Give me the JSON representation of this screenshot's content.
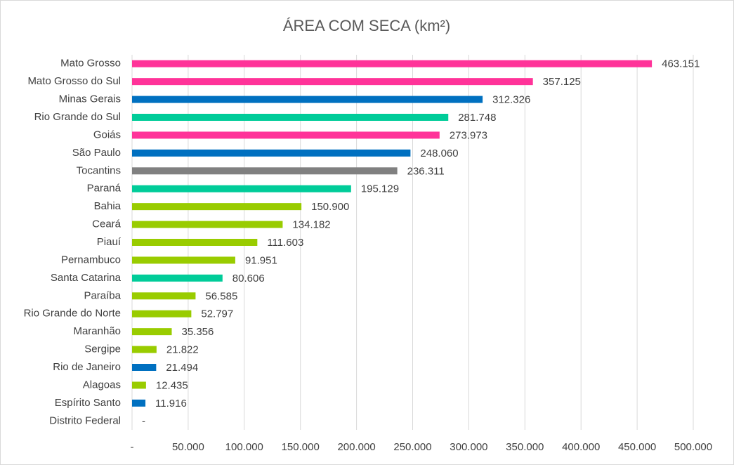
{
  "chart_data": {
    "type": "barh",
    "title": "ÁREA COM SECA (km²)",
    "categories": [
      "Mato Grosso",
      "Mato Grosso do Sul",
      "Minas Gerais",
      "Rio Grande do Sul",
      "Goiás",
      "São Paulo",
      "Tocantins",
      "Paraná",
      "Bahia",
      "Ceará",
      "Piauí",
      "Pernambuco",
      "Santa Catarina",
      "Paraíba",
      "Rio Grande do Norte",
      "Maranhão",
      "Sergipe",
      "Rio de Janeiro",
      "Alagoas",
      "Espírito Santo",
      "Distrito Federal"
    ],
    "values": [
      463151,
      357125,
      312326,
      281748,
      273973,
      248060,
      236311,
      195129,
      150900,
      134182,
      111603,
      91951,
      80606,
      56585,
      52797,
      35356,
      21822,
      21494,
      12435,
      11916,
      0
    ],
    "value_labels": [
      "463.151",
      "357.125",
      "312.326",
      "281.748",
      "273.973",
      "248.060",
      "236.311",
      "195.129",
      "150.900",
      "134.182",
      "111.603",
      "91.951",
      "80.606",
      "56.585",
      "52.797",
      "35.356",
      "21.822",
      "21.494",
      "12.435",
      "11.916",
      "-"
    ],
    "colors": [
      "#ff3399",
      "#ff3399",
      "#0070c0",
      "#00cc99",
      "#ff3399",
      "#0070c0",
      "#808080",
      "#00cc99",
      "#99cc00",
      "#99cc00",
      "#99cc00",
      "#99cc00",
      "#00cc99",
      "#99cc00",
      "#99cc00",
      "#99cc00",
      "#99cc00",
      "#0070c0",
      "#99cc00",
      "#0070c0",
      "#99cc00"
    ],
    "xlim": [
      0,
      500000
    ],
    "xticks": [
      {
        "value": 0,
        "label": "-"
      },
      {
        "value": 50000,
        "label": "50.000"
      },
      {
        "value": 100000,
        "label": "100.000"
      },
      {
        "value": 150000,
        "label": "150.000"
      },
      {
        "value": 200000,
        "label": "200.000"
      },
      {
        "value": 250000,
        "label": "250.000"
      },
      {
        "value": 300000,
        "label": "300.000"
      },
      {
        "value": 350000,
        "label": "350.000"
      },
      {
        "value": 400000,
        "label": "400.000"
      },
      {
        "value": 450000,
        "label": "450.000"
      },
      {
        "value": 500000,
        "label": "500.000"
      }
    ],
    "grid": true
  }
}
